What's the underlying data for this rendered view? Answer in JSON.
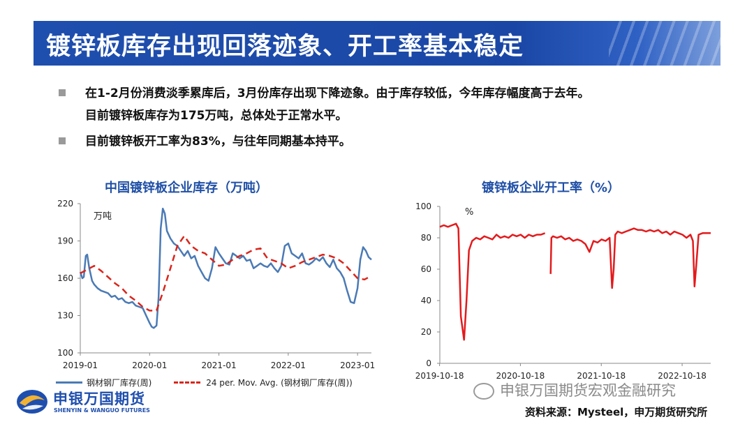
{
  "page": {
    "title": "镀锌板库存出现回落迹象、开工率基本稳定",
    "bullets": [
      "在1-2月份消费淡季累库后，3月份库存出现下降迹象。由于库存较低，今年库存幅度高于去年。",
      "目前镀锌板库存为175万吨，总体处于正常水平。",
      "目前镀锌板开工率为83%，与往年同期基本持平。"
    ],
    "watermark": "申银万国期货宏观金融研究",
    "source": "资料来源：Mysteel，申万期货研究所",
    "logo": {
      "cn": "申银万国期货",
      "en": "SHENYIN & WANGUO FUTURES"
    },
    "colors": {
      "title_bar": "#1f4fae",
      "inventory_line": "#4a7ab5",
      "moving_avg": "#d9261c",
      "run_rate_line": "#e31a1c"
    }
  },
  "chart_data": [
    {
      "type": "line",
      "title": "中国镀锌板企业库存（万吨）",
      "unit_label": "万吨",
      "ylim": [
        100,
        220
      ],
      "yticks": [
        100,
        130,
        160,
        190,
        220
      ],
      "x_range": [
        2019.0,
        2023.2
      ],
      "xticks": [
        "2019-01",
        "2020-01",
        "2021-01",
        "2022-01",
        "2023-01"
      ],
      "series": [
        {
          "name": "钢材钢厂库存(周)",
          "style": "solid",
          "x": [
            2019.0,
            2019.03,
            2019.05,
            2019.08,
            2019.1,
            2019.13,
            2019.17,
            2019.2,
            2019.25,
            2019.3,
            2019.35,
            2019.4,
            2019.45,
            2019.5,
            2019.55,
            2019.6,
            2019.65,
            2019.7,
            2019.75,
            2019.8,
            2019.85,
            2019.9,
            2019.95,
            2020.0,
            2020.03,
            2020.06,
            2020.1,
            2020.13,
            2020.16,
            2020.19,
            2020.22,
            2020.25,
            2020.3,
            2020.35,
            2020.4,
            2020.45,
            2020.5,
            2020.55,
            2020.6,
            2020.65,
            2020.7,
            2020.75,
            2020.8,
            2020.85,
            2020.9,
            2020.95,
            2021.0,
            2021.05,
            2021.1,
            2021.15,
            2021.2,
            2021.25,
            2021.3,
            2021.35,
            2021.4,
            2021.45,
            2021.5,
            2021.55,
            2021.6,
            2021.65,
            2021.7,
            2021.75,
            2021.8,
            2021.85,
            2021.9,
            2021.95,
            2022.0,
            2022.05,
            2022.1,
            2022.15,
            2022.2,
            2022.25,
            2022.3,
            2022.35,
            2022.4,
            2022.45,
            2022.5,
            2022.55,
            2022.6,
            2022.65,
            2022.7,
            2022.75,
            2022.8,
            2022.85,
            2022.9,
            2022.95,
            2023.0,
            2023.04,
            2023.08,
            2023.12,
            2023.16,
            2023.2
          ],
          "values": [
            165,
            160,
            161,
            178,
            179,
            168,
            158,
            155,
            152,
            150,
            149,
            148,
            145,
            146,
            143,
            144,
            141,
            140,
            141,
            138,
            137,
            136,
            130,
            124,
            121,
            120,
            122,
            145,
            200,
            216,
            212,
            198,
            192,
            188,
            186,
            182,
            178,
            182,
            176,
            178,
            170,
            165,
            160,
            158,
            168,
            185,
            180,
            176,
            172,
            171,
            180,
            178,
            176,
            178,
            174,
            175,
            168,
            170,
            172,
            170,
            169,
            172,
            168,
            165,
            170,
            186,
            188,
            180,
            178,
            176,
            180,
            172,
            171,
            173,
            176,
            174,
            177,
            172,
            169,
            175,
            168,
            165,
            160,
            150,
            141,
            140,
            152,
            175,
            185,
            182,
            177,
            175
          ]
        },
        {
          "name": "24 per. Mov. Avg. (钢材钢厂库存(周))",
          "style": "dashed",
          "x": [
            2019.0,
            2019.1,
            2019.2,
            2019.3,
            2019.4,
            2019.5,
            2019.6,
            2019.7,
            2019.8,
            2019.9,
            2020.0,
            2020.1,
            2020.2,
            2020.3,
            2020.4,
            2020.5,
            2020.6,
            2020.7,
            2020.8,
            2020.9,
            2021.0,
            2021.1,
            2021.2,
            2021.3,
            2021.4,
            2021.5,
            2021.6,
            2021.7,
            2021.8,
            2021.9,
            2022.0,
            2022.1,
            2022.2,
            2022.3,
            2022.4,
            2022.5,
            2022.6,
            2022.7,
            2022.8,
            2022.9,
            2023.0,
            2023.1,
            2023.2
          ],
          "values": [
            164,
            167,
            170,
            166,
            161,
            156,
            152,
            146,
            142,
            137,
            134,
            134,
            150,
            168,
            186,
            194,
            186,
            182,
            180,
            175,
            170,
            171,
            175,
            178,
            180,
            183,
            184,
            176,
            174,
            172,
            168,
            170,
            173,
            175,
            177,
            179,
            178,
            176,
            172,
            166,
            160,
            159,
            162
          ]
        }
      ]
    },
    {
      "type": "line",
      "title": "镀锌板企业开工率（%）",
      "unit_label": "%",
      "ylim": [
        0,
        100
      ],
      "yticks": [
        0,
        20,
        40,
        60,
        80,
        100
      ],
      "x_range": [
        2019.8,
        2023.15
      ],
      "xticks": [
        "2019-10-18",
        "2020-10-18",
        "2021-10-18",
        "2022-10-18"
      ],
      "series": [
        {
          "name": "开工率",
          "segments": [
            {
              "x": [
                2019.8,
                2019.85,
                2019.9,
                2019.95,
                2020.0,
                2020.03,
                2020.06,
                2020.1,
                2020.13,
                2020.16,
                2020.2,
                2020.25,
                2020.3,
                2020.35,
                2020.4,
                2020.45,
                2020.5,
                2020.55,
                2020.6,
                2020.65,
                2020.7,
                2020.75,
                2020.8,
                2020.85,
                2020.9,
                2020.95,
                2021.0,
                2021.05,
                2021.1
              ],
              "values": [
                87,
                88,
                87,
                88,
                89,
                86,
                30,
                15,
                40,
                72,
                78,
                80,
                79,
                81,
                80,
                79,
                82,
                80,
                81,
                80,
                82,
                81,
                82,
                80,
                82,
                81,
                82,
                82,
                83
              ]
            },
            {
              "x": [
                2021.17,
                2021.18,
                2021.2,
                2021.25,
                2021.3,
                2021.35,
                2021.4,
                2021.45,
                2021.5,
                2021.55,
                2021.6,
                2021.65,
                2021.7,
                2021.75,
                2021.8,
                2021.85,
                2021.9,
                2021.93,
                2021.95,
                2021.97,
                2022.0,
                2022.05,
                2022.1,
                2022.15,
                2022.2,
                2022.25,
                2022.3,
                2022.35,
                2022.4,
                2022.45,
                2022.5,
                2022.55,
                2022.6,
                2022.65,
                2022.7,
                2022.75,
                2022.8,
                2022.85,
                2022.9,
                2022.93,
                2022.95,
                2022.97,
                2023.0,
                2023.05,
                2023.1,
                2023.15
              ],
              "values": [
                57,
                80,
                81,
                80,
                81,
                79,
                80,
                78,
                79,
                78,
                76,
                71,
                78,
                77,
                79,
                78,
                80,
                48,
                60,
                82,
                84,
                83,
                84,
                85,
                86,
                85,
                85,
                84,
                85,
                84,
                85,
                83,
                84,
                82,
                84,
                83,
                82,
                80,
                82,
                78,
                49,
                62,
                82,
                83,
                83,
                83
              ]
            }
          ]
        }
      ]
    }
  ]
}
